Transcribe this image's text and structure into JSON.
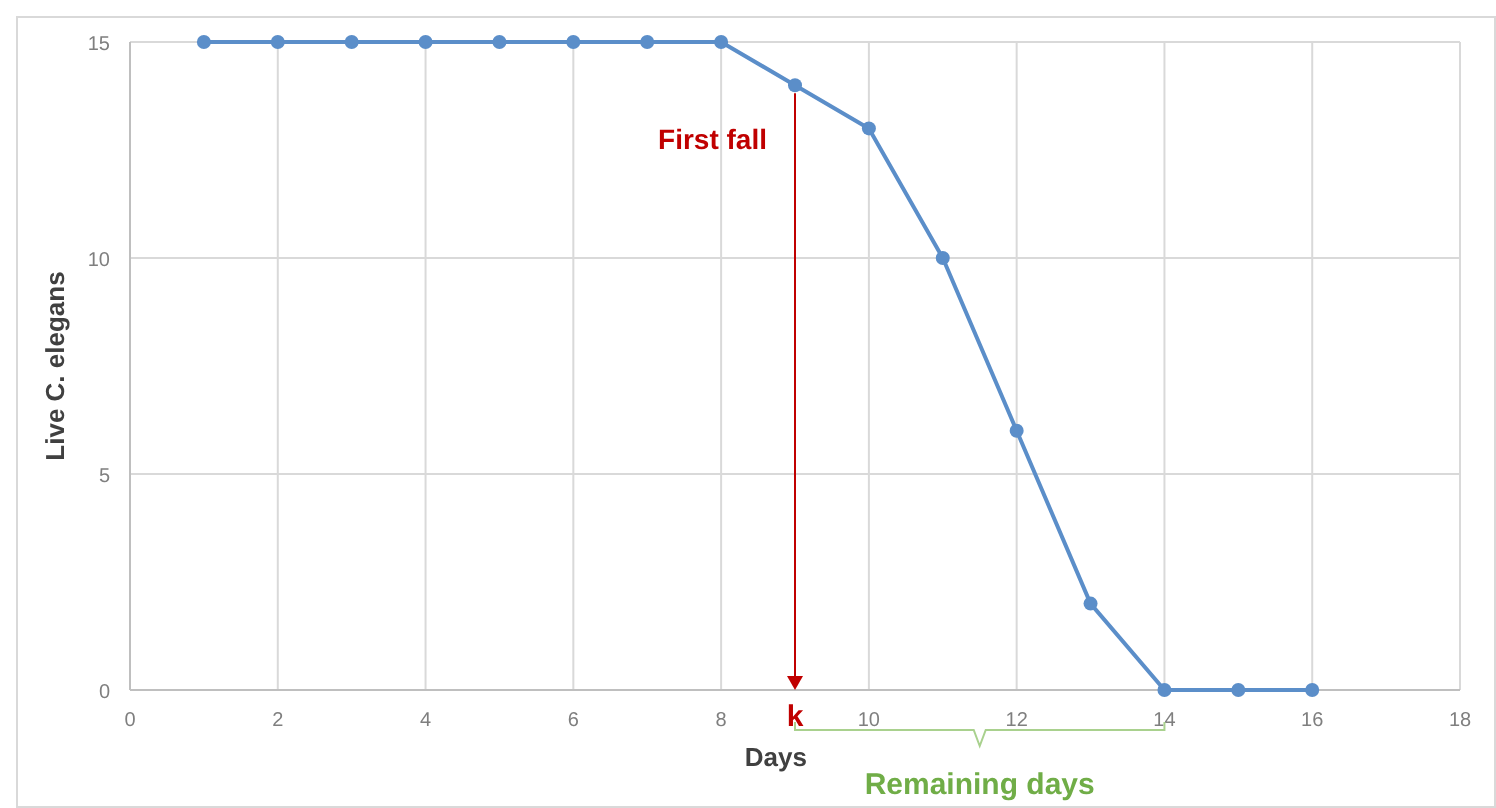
{
  "chart_data": {
    "type": "line",
    "xlabel": "Days",
    "ylabel": "Live C. elegans",
    "x": [
      1,
      2,
      3,
      4,
      5,
      6,
      7,
      8,
      9,
      10,
      11,
      12,
      13,
      14,
      15,
      16
    ],
    "series": [
      {
        "color": "#5b8ec9",
        "values": [
          15,
          15,
          15,
          15,
          15,
          15,
          15,
          15,
          14,
          13,
          10,
          6,
          2,
          0,
          0,
          0
        ]
      }
    ],
    "xlim": [
      0,
      18
    ],
    "xticks": [
      0,
      2,
      4,
      6,
      8,
      10,
      12,
      14,
      16,
      18
    ],
    "ylim": [
      0,
      15
    ],
    "yticks": [
      0,
      5,
      10,
      15
    ],
    "grid": true,
    "marker": "circle",
    "line_style": "solid",
    "ref_lines": [
      {
        "axis": "x",
        "value": 9,
        "label": "k",
        "color": "#c00000"
      }
    ],
    "annotations": [
      {
        "text": "First fall",
        "x": 9,
        "y": 14
      },
      "Remaining days"
    ]
  }
}
